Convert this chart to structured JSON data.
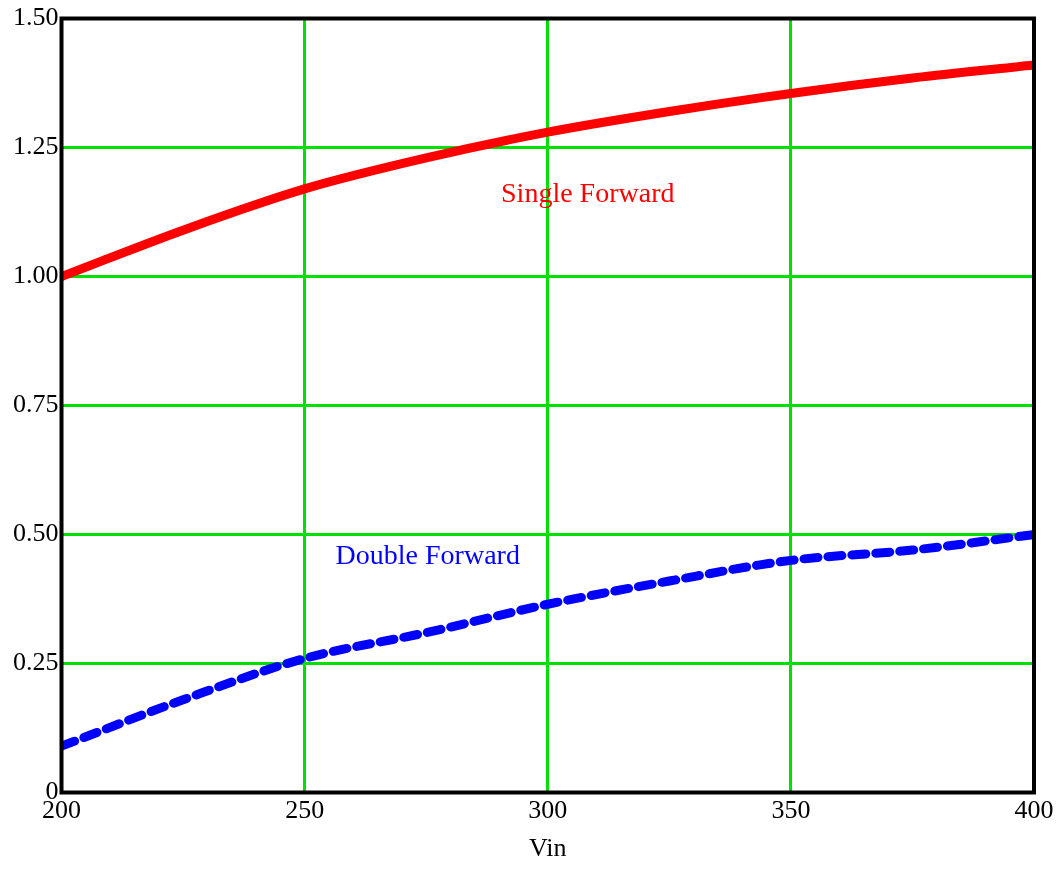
{
  "chart_data": {
    "type": "line",
    "xlabel": "Vin",
    "x": [
      200,
      225,
      250,
      275,
      300,
      325,
      350,
      375,
      400
    ],
    "xlim": [
      200,
      400
    ],
    "xticks": [
      200,
      250,
      300,
      350,
      400
    ],
    "ylim": [
      0,
      1.5
    ],
    "yticks": [
      {
        "value": 0,
        "label": "0"
      },
      {
        "value": 0.25,
        "label": "0.25"
      },
      {
        "value": 0.5,
        "label": "0.50"
      },
      {
        "value": 0.75,
        "label": "0.75"
      },
      {
        "value": 1,
        "label": "1.00"
      },
      {
        "value": 1.25,
        "label": "1.25"
      },
      {
        "value": 1.5,
        "label": "1.50"
      }
    ],
    "grid": true,
    "legend": false,
    "marker": "none",
    "series": [
      {
        "name": "Single Forward",
        "color": "#ff0000",
        "line_style": "solid",
        "values": [
          1.0,
          1.09,
          1.17,
          1.23,
          1.28,
          1.32,
          1.355,
          1.385,
          1.41
        ]
      },
      {
        "name": "Double Forward",
        "color": "#0000ff",
        "line_style": "dashed",
        "values": [
          0.09,
          0.18,
          0.26,
          0.31,
          0.365,
          0.41,
          0.45,
          0.47,
          0.5
        ]
      }
    ]
  }
}
